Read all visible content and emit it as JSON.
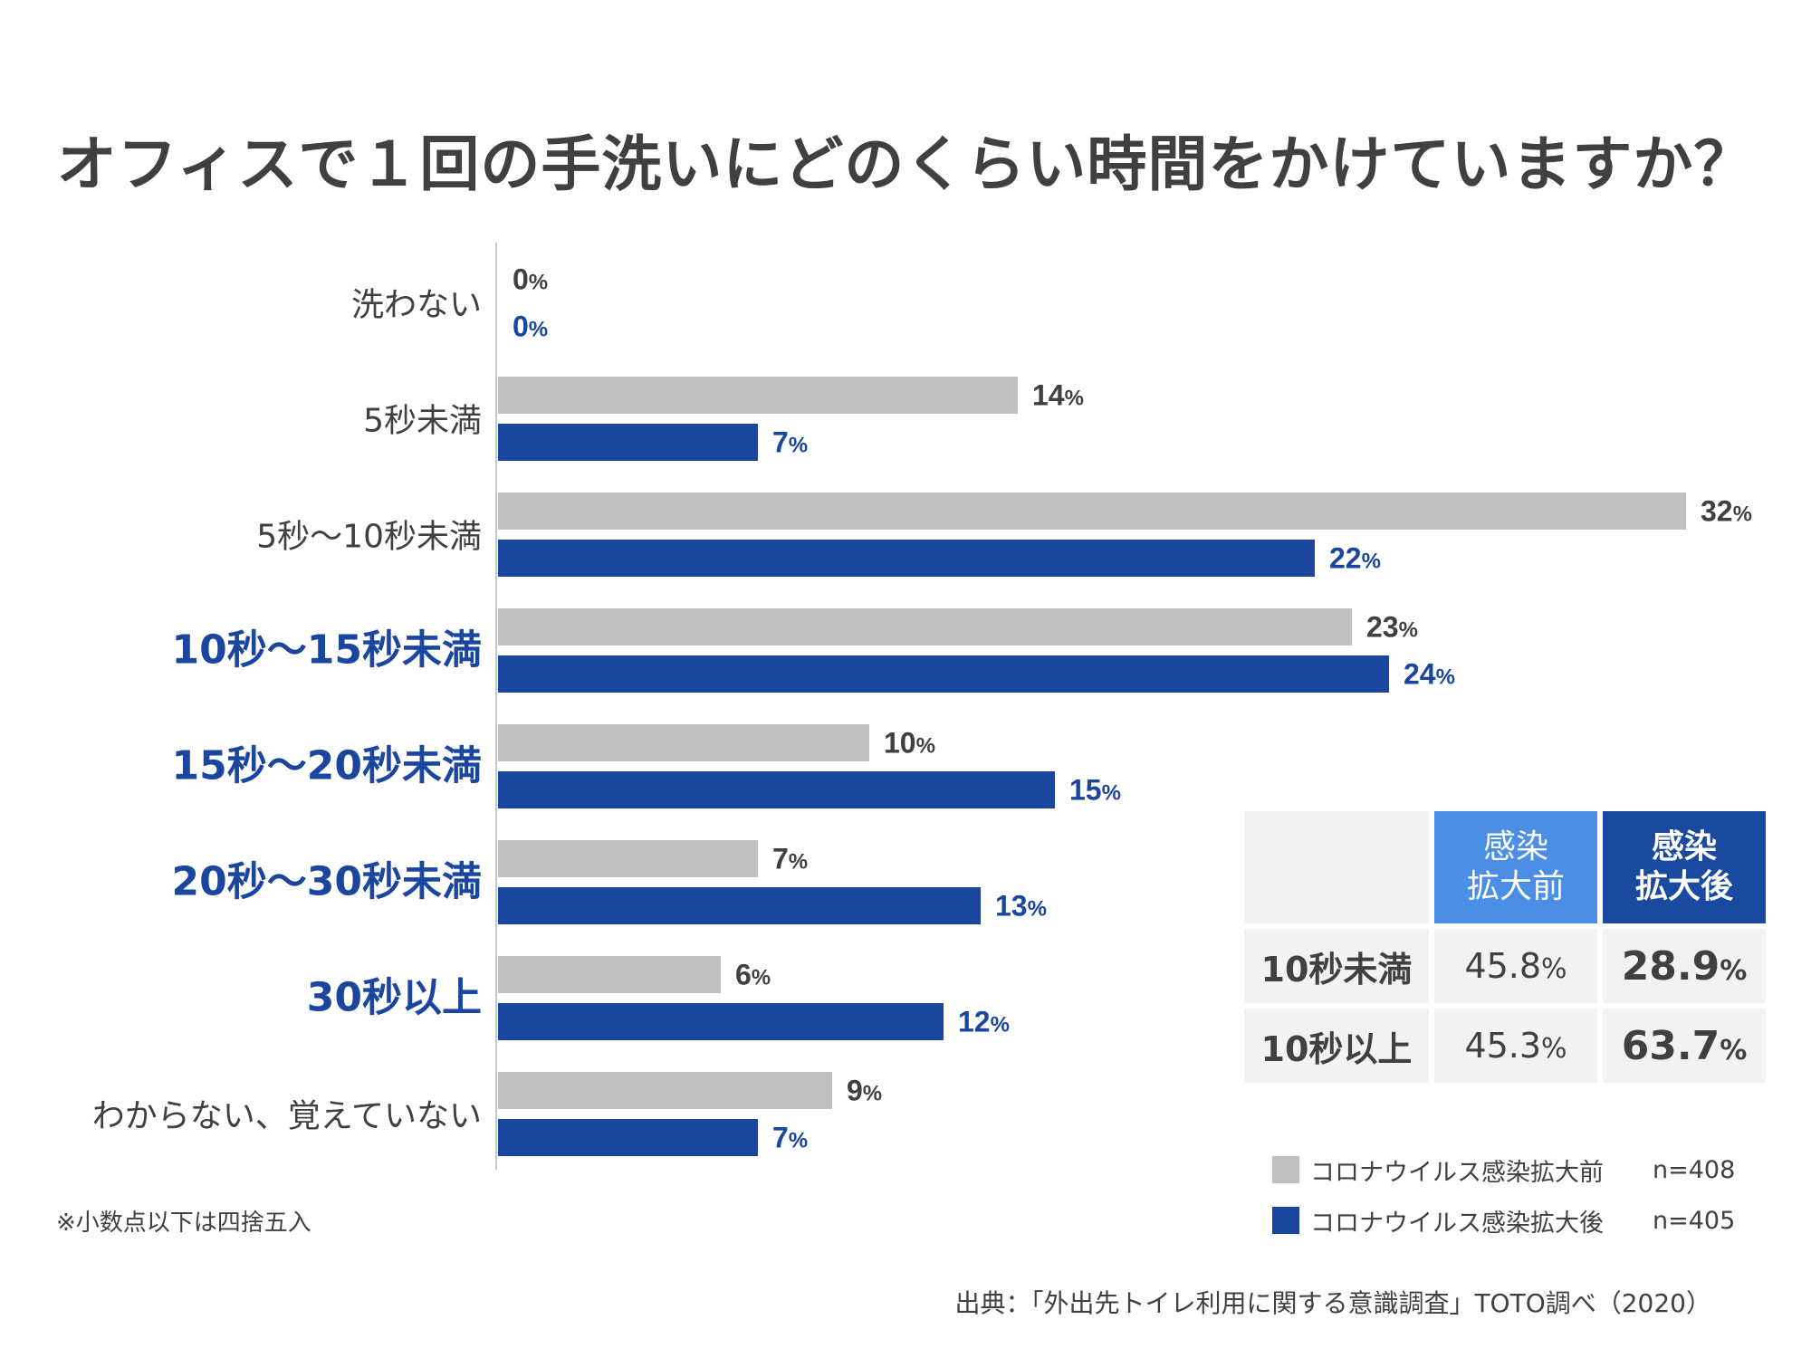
{
  "title": "オフィスで１回の手洗いにどのくらい時間をかけていますか？",
  "chart_data": {
    "type": "bar",
    "orientation": "horizontal",
    "categories": [
      "洗わない",
      "5秒未満",
      "5秒～10秒未満",
      "10秒～15秒未満",
      "15秒～20秒未満",
      "20秒～30秒未満",
      "30秒以上",
      "わからない、覚えていない"
    ],
    "highlighted_categories": [
      "10秒～15秒未満",
      "15秒～20秒未満",
      "20秒～30秒未満",
      "30秒以上"
    ],
    "series": [
      {
        "name": "コロナウイルス感染拡大前",
        "n": "n=408",
        "color": "#bfbfbf",
        "label_color": "#404040",
        "values": [
          0,
          14,
          32,
          23,
          10,
          7,
          6,
          9
        ]
      },
      {
        "name": "コロナウイルス感染拡大後",
        "n": "n=405",
        "color": "#1a46a0",
        "label_color": "#1a46a0",
        "values": [
          0,
          7,
          22,
          24,
          15,
          13,
          12,
          7
        ]
      }
    ],
    "unit": "%",
    "xlim": [
      0,
      32
    ],
    "grid": false,
    "legend_position": "bottom-right"
  },
  "summary_table": {
    "headers": {
      "before": "感染\n拡大前",
      "after": "感染\n拡大後"
    },
    "rows": [
      {
        "label": "10秒未満",
        "before": "45.8",
        "after": "28.9"
      },
      {
        "label": "10秒以上",
        "before": "45.3",
        "after": "63.7"
      }
    ],
    "unit": "%"
  },
  "colors": {
    "before": "#bfbfbf",
    "after": "#1a46a0",
    "header_before": "#4a8fe5",
    "header_after": "#1a4aa0",
    "highlight_label": "#1a46a0",
    "text": "#404040"
  },
  "note": "※小数点以下は四捨五入",
  "source": "出典：「外出先トイレ利用に関する意識調査」TOTO調べ（2020）"
}
